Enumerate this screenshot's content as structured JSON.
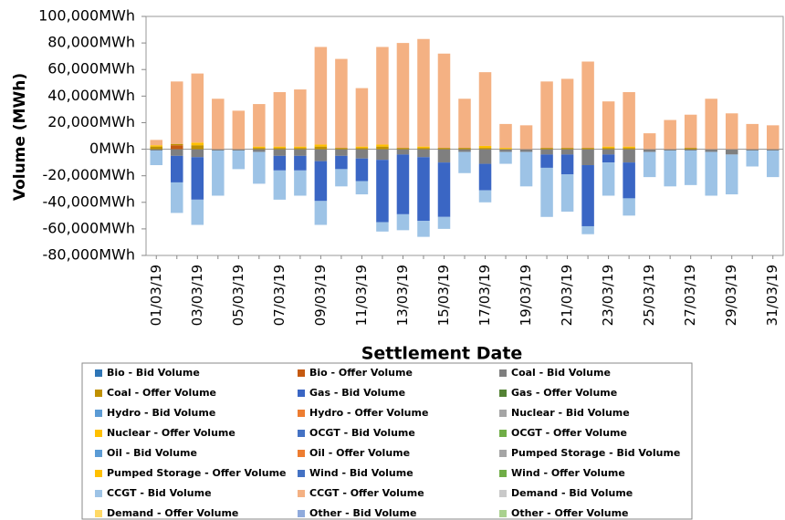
{
  "chart_data": {
    "type": "bar",
    "stacked": true,
    "x_label": "Settlement Date",
    "y_label": "Volume (MWh)",
    "categories": [
      "01/03/19",
      null,
      "03/03/19",
      null,
      "05/03/19",
      null,
      "07/03/19",
      null,
      "09/03/19",
      null,
      "11/03/19",
      null,
      "13/03/19",
      null,
      "15/03/19",
      null,
      "17/03/19",
      null,
      "19/03/19",
      null,
      "21/03/19",
      null,
      "23/03/19",
      null,
      "25/03/19",
      null,
      "27/03/19",
      null,
      "29/03/19",
      null,
      "31/03/19"
    ],
    "ylim": [
      -80000,
      100000
    ],
    "yticks": [
      {
        "value": -80000,
        "label": "-80,000MWh"
      },
      {
        "value": -60000,
        "label": "-60,000MWh"
      },
      {
        "value": -40000,
        "label": "-40,000MWh"
      },
      {
        "value": -20000,
        "label": "-20,000MWh"
      },
      {
        "value": 0,
        "label": "0MWh"
      },
      {
        "value": 20000,
        "label": "20,000MWh"
      },
      {
        "value": 40000,
        "label": "40,000MWh"
      },
      {
        "value": 60000,
        "label": "60,000MWh"
      },
      {
        "value": 80000,
        "label": "80,000MWh"
      },
      {
        "value": 100000,
        "label": "100,000MWh"
      }
    ],
    "series": [
      {
        "name": "Bio - Bid Volume",
        "color": "#2e75b6",
        "values": [
          0,
          0,
          0,
          0,
          0,
          0,
          0,
          0,
          0,
          0,
          0,
          0,
          0,
          0,
          0,
          0,
          0,
          0,
          0,
          0,
          0,
          0,
          0,
          0,
          0,
          0,
          0,
          0,
          0,
          0,
          0
        ]
      },
      {
        "name": "Bio - Offer Volume",
        "color": "#c55a11",
        "values": [
          0,
          3000,
          0,
          0,
          0,
          0,
          0,
          0,
          0,
          0,
          0,
          0,
          0,
          0,
          0,
          0,
          0,
          0,
          0,
          0,
          0,
          0,
          0,
          0,
          0,
          0,
          0,
          0,
          0,
          0,
          0
        ]
      },
      {
        "name": "Coal - Bid Volume",
        "color": "#7f7f7f",
        "values": [
          -1000,
          -5000,
          -6000,
          -1000,
          -1000,
          -2000,
          -5000,
          -5000,
          -9000,
          -5000,
          -7000,
          -8000,
          -4000,
          -6000,
          -10000,
          -2000,
          -11000,
          -2000,
          -2000,
          -4000,
          -4000,
          -12000,
          -4000,
          -10000,
          -2000,
          -1000,
          -1000,
          -2000,
          -4000,
          -1000,
          -1000
        ]
      },
      {
        "name": "Coal - Offer Volume",
        "color": "#bf9000",
        "values": [
          2000,
          1000,
          3000,
          0,
          0,
          1000,
          1000,
          1000,
          2000,
          1000,
          1000,
          2000,
          1000,
          1000,
          1000,
          1000,
          1000,
          0,
          0,
          1000,
          1000,
          1000,
          1000,
          1000,
          0,
          0,
          1000,
          0,
          0,
          0,
          0
        ]
      },
      {
        "name": "Gas - Bid Volume",
        "color": "#3a66c4",
        "values": [
          0,
          -20000,
          -32000,
          0,
          0,
          0,
          -11000,
          -11000,
          -30000,
          -10000,
          -17000,
          -47000,
          -45000,
          -48000,
          -41000,
          0,
          -20000,
          0,
          0,
          -10000,
          -15000,
          -46000,
          -6000,
          -27000,
          0,
          0,
          0,
          0,
          0,
          0,
          0
        ]
      },
      {
        "name": "Gas - Offer Volume",
        "color": "#548235",
        "values": [
          0,
          0,
          0,
          0,
          0,
          0,
          0,
          0,
          0,
          0,
          0,
          0,
          0,
          0,
          0,
          0,
          0,
          0,
          0,
          0,
          0,
          0,
          0,
          0,
          0,
          0,
          0,
          0,
          0,
          0,
          0
        ]
      },
      {
        "name": "Hydro - Bid Volume",
        "color": "#5b9bd5",
        "values": [
          0,
          0,
          0,
          0,
          0,
          0,
          0,
          0,
          0,
          0,
          0,
          0,
          0,
          0,
          0,
          0,
          0,
          0,
          0,
          0,
          0,
          0,
          0,
          0,
          0,
          0,
          0,
          0,
          0,
          0,
          0
        ]
      },
      {
        "name": "Hydro - Offer Volume",
        "color": "#ed7d31",
        "values": [
          0,
          0,
          0,
          0,
          0,
          0,
          0,
          0,
          0,
          0,
          0,
          0,
          0,
          0,
          0,
          0,
          0,
          0,
          0,
          0,
          0,
          0,
          0,
          0,
          0,
          0,
          0,
          0,
          0,
          0,
          0
        ]
      },
      {
        "name": "Nuclear - Bid Volume",
        "color": "#a5a5a5",
        "values": [
          0,
          0,
          0,
          0,
          0,
          0,
          0,
          0,
          0,
          0,
          0,
          0,
          0,
          0,
          0,
          0,
          0,
          0,
          0,
          0,
          0,
          0,
          0,
          0,
          0,
          0,
          0,
          0,
          0,
          0,
          0
        ]
      },
      {
        "name": "Nuclear - Offer Volume",
        "color": "#ffc000",
        "values": [
          0,
          0,
          0,
          0,
          0,
          0,
          0,
          0,
          0,
          0,
          0,
          0,
          0,
          0,
          0,
          0,
          0,
          0,
          0,
          0,
          0,
          0,
          0,
          0,
          0,
          0,
          0,
          0,
          0,
          0,
          0
        ]
      },
      {
        "name": "OCGT - Bid Volume",
        "color": "#4472c4",
        "values": [
          0,
          0,
          0,
          0,
          0,
          0,
          0,
          0,
          0,
          0,
          0,
          0,
          0,
          0,
          0,
          0,
          0,
          0,
          0,
          0,
          0,
          0,
          0,
          0,
          0,
          0,
          0,
          0,
          0,
          0,
          0
        ]
      },
      {
        "name": "OCGT - Offer Volume",
        "color": "#70ad47",
        "values": [
          0,
          0,
          0,
          0,
          0,
          0,
          0,
          0,
          0,
          0,
          0,
          0,
          0,
          0,
          0,
          0,
          0,
          0,
          0,
          0,
          0,
          0,
          0,
          0,
          0,
          0,
          0,
          0,
          0,
          0,
          0
        ]
      },
      {
        "name": "Oil - Bid Volume",
        "color": "#5b9bd5",
        "values": [
          0,
          0,
          0,
          0,
          0,
          0,
          0,
          0,
          0,
          0,
          0,
          0,
          0,
          0,
          0,
          0,
          0,
          0,
          0,
          0,
          0,
          0,
          0,
          0,
          0,
          0,
          0,
          0,
          0,
          0,
          0
        ]
      },
      {
        "name": "Oil - Offer Volume",
        "color": "#ed7d31",
        "values": [
          0,
          0,
          0,
          0,
          0,
          0,
          0,
          0,
          0,
          0,
          0,
          0,
          0,
          0,
          0,
          0,
          0,
          0,
          0,
          0,
          0,
          0,
          0,
          0,
          0,
          0,
          0,
          0,
          0,
          0,
          0
        ]
      },
      {
        "name": "Pumped Storage - Bid Volume",
        "color": "#a5a5a5",
        "values": [
          0,
          0,
          0,
          0,
          0,
          0,
          0,
          0,
          0,
          0,
          0,
          0,
          0,
          0,
          0,
          0,
          0,
          0,
          0,
          0,
          0,
          0,
          0,
          0,
          0,
          0,
          0,
          0,
          0,
          0,
          0
        ]
      },
      {
        "name": "Pumped Storage - Offer Volume",
        "color": "#ffc000",
        "values": [
          1000,
          0,
          2000,
          0,
          0,
          1000,
          1000,
          1000,
          1500,
          0,
          1000,
          1500,
          0,
          1000,
          0,
          0,
          1500,
          1000,
          0,
          0,
          0,
          0,
          1000,
          1000,
          0,
          0,
          0,
          0,
          0,
          0,
          0
        ]
      },
      {
        "name": "Wind - Bid Volume",
        "color": "#4472c4",
        "values": [
          0,
          0,
          0,
          0,
          0,
          0,
          0,
          0,
          0,
          0,
          0,
          0,
          0,
          0,
          0,
          0,
          0,
          0,
          0,
          0,
          0,
          0,
          0,
          0,
          0,
          0,
          0,
          0,
          0,
          0,
          0
        ]
      },
      {
        "name": "Wind - Offer Volume",
        "color": "#70ad47",
        "values": [
          0,
          0,
          0,
          0,
          0,
          0,
          0,
          0,
          0,
          0,
          0,
          0,
          0,
          0,
          0,
          0,
          0,
          0,
          0,
          0,
          0,
          0,
          0,
          0,
          0,
          0,
          0,
          0,
          0,
          0,
          0
        ]
      },
      {
        "name": "CCGT - Bid Volume",
        "color": "#9dc3e6",
        "values": [
          -11000,
          -23000,
          -19000,
          -34000,
          -14000,
          -24000,
          -22000,
          -19000,
          -18000,
          -13000,
          -10000,
          -7000,
          -12000,
          -12000,
          -9000,
          -16000,
          -9000,
          -9000,
          -26000,
          -37000,
          -28000,
          -6000,
          -25000,
          -13000,
          -19000,
          -27000,
          -26000,
          -33000,
          -30000,
          -12000,
          -20000
        ]
      },
      {
        "name": "CCGT - Offer Volume",
        "color": "#f4b183",
        "values": [
          4000,
          47000,
          52000,
          38000,
          29000,
          32000,
          41000,
          43000,
          73500,
          67000,
          44000,
          73500,
          79000,
          81000,
          71000,
          37000,
          55500,
          18000,
          18000,
          50000,
          52000,
          65000,
          34000,
          41000,
          12000,
          22000,
          25000,
          38000,
          27000,
          19000,
          18000
        ]
      },
      {
        "name": "Demand - Bid Volume",
        "color": "#c9c9c9",
        "values": [
          0,
          0,
          0,
          0,
          0,
          0,
          0,
          0,
          0,
          0,
          0,
          0,
          0,
          0,
          0,
          0,
          0,
          0,
          0,
          0,
          0,
          0,
          0,
          0,
          0,
          0,
          0,
          0,
          0,
          0,
          0
        ]
      },
      {
        "name": "Demand - Offer Volume",
        "color": "#ffd966",
        "values": [
          0,
          0,
          0,
          0,
          0,
          0,
          0,
          0,
          0,
          0,
          0,
          0,
          0,
          0,
          0,
          0,
          0,
          0,
          0,
          0,
          0,
          0,
          0,
          0,
          0,
          0,
          0,
          0,
          0,
          0,
          0
        ]
      },
      {
        "name": "Other - Bid Volume",
        "color": "#8faadc",
        "values": [
          0,
          0,
          0,
          0,
          0,
          0,
          0,
          0,
          0,
          0,
          0,
          0,
          0,
          0,
          0,
          0,
          0,
          0,
          0,
          0,
          0,
          0,
          0,
          0,
          0,
          0,
          0,
          0,
          0,
          0,
          0
        ]
      },
      {
        "name": "Other - Offer Volume",
        "color": "#a9d18e",
        "values": [
          0,
          0,
          0,
          0,
          0,
          0,
          0,
          0,
          0,
          0,
          0,
          0,
          0,
          0,
          0,
          0,
          0,
          0,
          0,
          0,
          0,
          0,
          0,
          0,
          0,
          0,
          0,
          0,
          0,
          0,
          0
        ]
      }
    ]
  }
}
